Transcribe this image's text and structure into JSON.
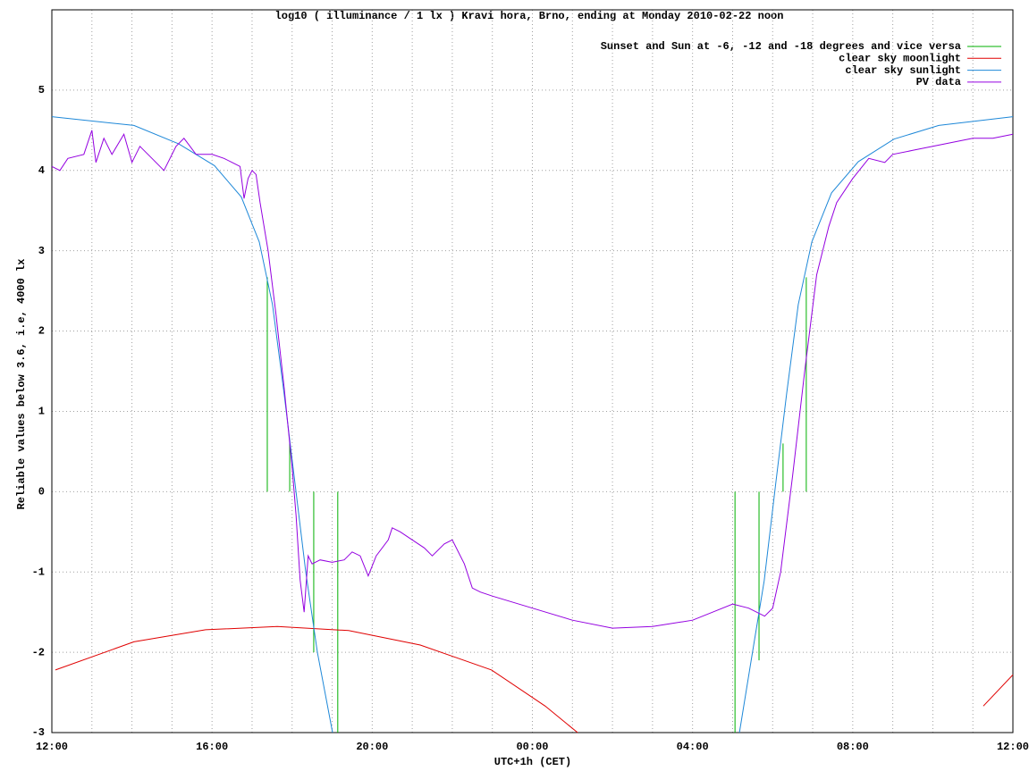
{
  "chart_data": {
    "type": "line",
    "title": "log10 ( illuminance / 1 lx ) Kravi hora, Brno, ending at Monday 2010-02-22 noon",
    "x_label": "UTC+1h (CET)",
    "y_label": "Reliable values below 3.6, i.e, 4000 lx",
    "xlim": [
      0,
      24
    ],
    "xticks": [
      {
        "value": 0,
        "label": "12:00"
      },
      {
        "value": 4,
        "label": "16:00"
      },
      {
        "value": 8,
        "label": "20:00"
      },
      {
        "value": 12,
        "label": "00:00"
      },
      {
        "value": 16,
        "label": "04:00"
      },
      {
        "value": 20,
        "label": "08:00"
      },
      {
        "value": 24,
        "label": "12:00"
      }
    ],
    "x_minor_ticks": [
      1,
      2,
      3,
      5,
      6,
      7,
      9,
      10,
      11,
      13,
      14,
      15,
      17,
      18,
      19,
      21,
      22,
      23
    ],
    "ylim": [
      -3,
      6
    ],
    "yticks": [
      -3,
      -2,
      -1,
      0,
      1,
      2,
      3,
      4,
      5
    ],
    "grid": true,
    "legend": "top-right",
    "series": [
      {
        "name": "Sunset and Sun at -6, -12 and -18 degrees and vice versa",
        "color": "#00b000",
        "style": "impulses",
        "x": [
          5.38,
          5.94,
          6.54,
          7.14,
          17.06,
          17.66,
          18.26,
          18.84
        ],
        "values": [
          2.67,
          0.6,
          -2.0,
          -3.0,
          -3.0,
          -2.1,
          0.6,
          2.67
        ]
      },
      {
        "name": "clear sky moonlight",
        "color": "#e00000",
        "style": "line",
        "x": [
          0.09,
          2.05,
          3.84,
          5.63,
          7.41,
          9.2,
          10.98,
          12.32,
          13.13,
          22.66,
          23.26,
          24
        ],
        "values": [
          -2.22,
          -1.87,
          -1.72,
          -1.68,
          -1.73,
          -1.91,
          -2.22,
          -2.67,
          -3.0,
          null,
          -2.67,
          -2.28
        ]
      },
      {
        "name": "clear sky sunlight",
        "color": "#1e88d8",
        "style": "line",
        "x": [
          0,
          2.05,
          3.17,
          4.06,
          4.73,
          5.18,
          5.51,
          5.8,
          6.07,
          6.34,
          6.63,
          7.01,
          12,
          17.17,
          17.46,
          17.79,
          18.08,
          18.35,
          18.64,
          18.98,
          19.47,
          20.14,
          21.03,
          22.15,
          24
        ],
        "values": [
          4.67,
          4.56,
          4.33,
          4.06,
          3.67,
          3.11,
          2.33,
          1.22,
          0.11,
          -1.0,
          -2.0,
          -3.0,
          null,
          -3.0,
          -2.11,
          -1.11,
          0.11,
          1.22,
          2.33,
          3.11,
          3.72,
          4.11,
          4.39,
          4.56,
          4.67
        ]
      },
      {
        "name": "PV data",
        "color": "#9400e0",
        "style": "line",
        "x": [
          0,
          0.2,
          0.4,
          0.8,
          1.0,
          1.1,
          1.3,
          1.5,
          1.8,
          2.0,
          2.2,
          2.5,
          2.8,
          3.1,
          3.3,
          3.6,
          4.0,
          4.3,
          4.5,
          4.7,
          4.8,
          4.9,
          5.0,
          5.1,
          5.2,
          5.4,
          5.6,
          5.8,
          6.0,
          6.1,
          6.2,
          6.3,
          6.4,
          6.5,
          6.7,
          7.0,
          7.3,
          7.5,
          7.7,
          7.9,
          8.1,
          8.4,
          8.5,
          8.7,
          9.0,
          9.3,
          9.5,
          9.8,
          10.0,
          10.3,
          10.5,
          10.7,
          11.0,
          12.0,
          13.0,
          14.0,
          15.0,
          16.0,
          16.5,
          17.0,
          17.4,
          17.8,
          18.0,
          18.2,
          18.5,
          18.8,
          19.1,
          19.4,
          19.6,
          20.0,
          20.4,
          20.8,
          21.0,
          21.5,
          22.0,
          22.5,
          23.0,
          23.5,
          24
        ],
        "values": [
          4.05,
          4.0,
          4.15,
          4.2,
          4.5,
          4.1,
          4.4,
          4.2,
          4.45,
          4.1,
          4.3,
          4.15,
          4.0,
          4.3,
          4.4,
          4.2,
          4.2,
          4.15,
          4.1,
          4.05,
          3.65,
          3.9,
          4.0,
          3.95,
          3.6,
          3.0,
          2.2,
          1.3,
          0.3,
          -0.3,
          -1.1,
          -1.5,
          -0.8,
          -0.9,
          -0.85,
          -0.88,
          -0.85,
          -0.75,
          -0.8,
          -1.05,
          -0.8,
          -0.6,
          -0.45,
          -0.5,
          -0.6,
          -0.7,
          -0.8,
          -0.65,
          -0.6,
          -0.9,
          -1.2,
          -1.25,
          -1.3,
          -1.45,
          -1.6,
          -1.7,
          -1.68,
          -1.6,
          -1.5,
          -1.4,
          -1.45,
          -1.55,
          -1.45,
          -1.0,
          0.2,
          1.5,
          2.7,
          3.3,
          3.6,
          3.9,
          4.15,
          4.1,
          4.2,
          4.25,
          4.3,
          4.35,
          4.4,
          4.4,
          4.45
        ]
      }
    ]
  }
}
